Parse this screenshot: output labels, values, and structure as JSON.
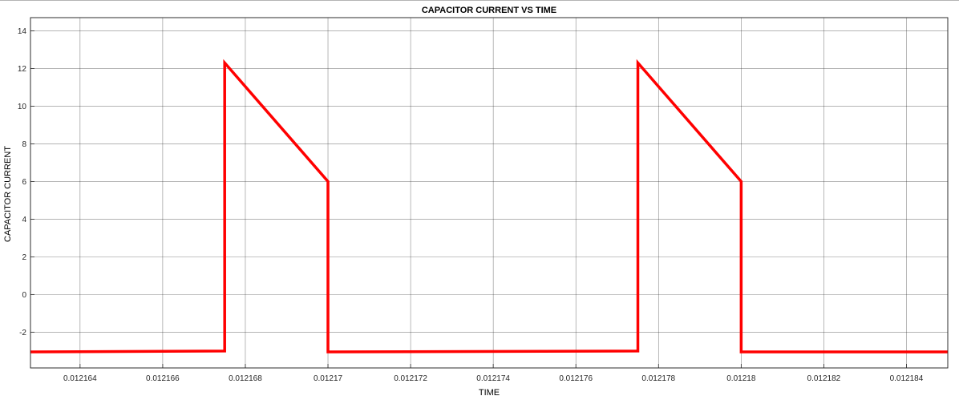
{
  "chart_data": {
    "type": "line",
    "title": "CAPACITOR CURRENT VS TIME",
    "xlabel": "TIME",
    "ylabel": "CAPACITOR CURRENT",
    "xlim": [
      0.0121628,
      0.012185
    ],
    "ylim": [
      -3.9,
      14.7
    ],
    "xticks": [
      0.012164,
      0.012166,
      0.012168,
      0.01217,
      0.012172,
      0.012174,
      0.012176,
      0.012178,
      0.01218,
      0.012182,
      0.012184
    ],
    "xtick_labels": [
      "0.012164",
      "0.012166",
      "0.012168",
      "0.01217",
      "0.012172",
      "0.012174",
      "0.012176",
      "0.012178",
      "0.01218",
      "0.012182",
      "0.012184"
    ],
    "yticks": [
      -2,
      0,
      2,
      4,
      6,
      8,
      10,
      12,
      14
    ],
    "ytick_labels": [
      "-2",
      "0",
      "2",
      "4",
      "6",
      "8",
      "10",
      "12",
      "14"
    ],
    "grid": true,
    "series": [
      {
        "color": "#ff0000",
        "x": [
          0.0121628,
          0.0121675,
          0.0121675,
          0.01217,
          0.01217,
          0.0121775,
          0.0121775,
          0.01218,
          0.01218,
          0.012185
        ],
        "y": [
          -3.05,
          -3.0,
          12.3,
          6.0,
          -3.05,
          -3.0,
          12.3,
          6.0,
          -3.05,
          -3.05
        ]
      }
    ]
  }
}
